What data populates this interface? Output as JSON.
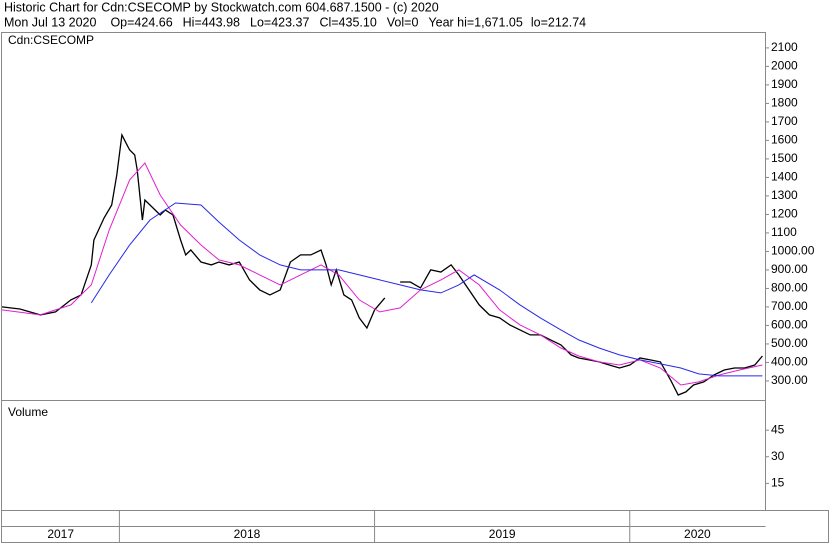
{
  "chart_data": {
    "type": "line",
    "title": "Historic Chart for Cdn:CSECOMP by Stockwatch.com 604.687.1500 - (c) 2020",
    "subtitle": [
      "Mon Jul 13 2020",
      "Op=424.66",
      "Hi=443.98",
      "Lo=423.37",
      "Cl=435.10",
      "Vol=0",
      "Year hi=1,671.05",
      "lo=212.74"
    ],
    "symbol_label": "Cdn:CSECOMP",
    "volume_label": "Volume",
    "xlim": [
      2017.54,
      2020.53
    ],
    "year_bands": [
      2017,
      2018,
      2019,
      2020
    ],
    "ylim": [
      197,
      2186
    ],
    "yticks": [
      2100,
      2000,
      1900,
      1800,
      1700,
      1600,
      1500,
      1400,
      1300,
      1200,
      1100,
      {
        "value": 1000,
        "label": "1000.00"
      },
      {
        "value": 900,
        "label": "900.00"
      },
      {
        "value": 800,
        "label": "800.00"
      },
      {
        "value": 700,
        "label": "700.00"
      },
      {
        "value": 600,
        "label": "600.00"
      },
      {
        "value": 500,
        "label": "500.00"
      },
      {
        "value": 400,
        "label": "400.00"
      },
      {
        "value": 300,
        "label": "300.00"
      }
    ],
    "volume_ylim": [
      0,
      62
    ],
    "volume_yticks": [
      45,
      30,
      15
    ],
    "series": [
      {
        "color": "#000000",
        "x": [
          2017.54,
          2017.61,
          2017.69,
          2017.75,
          2017.81,
          2017.85,
          2017.89,
          2017.9,
          2017.94,
          2017.97,
          2017.99,
          2018.01,
          2018.03,
          2018.04,
          2018.06,
          2018.07,
          2018.09,
          2018.1,
          2018.12,
          2018.14,
          2018.16,
          2018.18,
          2018.21,
          2018.24,
          2018.26,
          2018.28,
          2018.32,
          2018.36,
          2018.39,
          2018.43,
          2018.47,
          2018.51,
          2018.55,
          2018.59,
          2018.63,
          2018.67,
          2018.71,
          2018.75,
          2018.79,
          2018.81,
          2018.83,
          2018.85,
          2018.88,
          2018.91,
          2018.94,
          2018.97,
          2019.0,
          2019.04,
          2019.07,
          2019.1,
          2019.14,
          2019.18,
          2019.22,
          2019.26,
          2019.3,
          2019.33,
          2019.37,
          2019.41,
          2019.45,
          2019.49,
          2019.53,
          2019.57,
          2019.61,
          2019.65,
          2019.69,
          2019.73,
          2019.77,
          2019.8,
          2019.84,
          2019.88,
          2019.92,
          2019.96,
          2020.0,
          2020.04,
          2020.08,
          2020.12,
          2020.16,
          2020.19,
          2020.22,
          2020.25,
          2020.29,
          2020.33,
          2020.37,
          2020.41,
          2020.45,
          2020.49,
          2020.52
        ],
        "values": [
          700,
          689,
          657,
          673,
          738,
          765,
          927,
          1062,
          1181,
          1251,
          1414,
          1630,
          1576,
          1549,
          1522,
          1441,
          1170,
          1278,
          1251,
          1224,
          1197,
          1224,
          1197,
          1062,
          981,
          1008,
          943,
          927,
          943,
          927,
          943,
          846,
          792,
          765,
          792,
          943,
          981,
          981,
          1008,
          927,
          819,
          900,
          765,
          738,
          641,
          586,
          684,
          749,
          null,
          835,
          835,
          803,
          900,
          889,
          927,
          873,
          792,
          711,
          657,
          641,
          603,
          576,
          549,
          549,
          522,
          495,
          441,
          424,
          414,
          403,
          386,
          370,
          386,
          424,
          414,
          403,
          305,
          224,
          241,
          278,
          295,
          332,
          359,
          370,
          370,
          386,
          435
        ]
      },
      {
        "color": "#e020d0",
        "x": [
          2017.54,
          2017.69,
          2017.81,
          2017.89,
          2017.96,
          2018.04,
          2018.1,
          2018.16,
          2018.24,
          2018.32,
          2018.39,
          2018.47,
          2018.55,
          2018.63,
          2018.71,
          2018.79,
          2018.86,
          2018.94,
          2019.02,
          2019.1,
          2019.18,
          2019.26,
          2019.33,
          2019.41,
          2019.49,
          2019.57,
          2019.65,
          2019.73,
          2019.8,
          2019.88,
          2019.96,
          2020.04,
          2020.12,
          2020.2,
          2020.27,
          2020.35,
          2020.43,
          2020.52
        ],
        "values": [
          684,
          657,
          711,
          819,
          1116,
          1386,
          1478,
          1305,
          1143,
          1035,
          954,
          927,
          873,
          819,
          873,
          927,
          873,
          738,
          673,
          695,
          792,
          846,
          900,
          819,
          684,
          603,
          549,
          478,
          435,
          403,
          386,
          414,
          370,
          278,
          295,
          332,
          359,
          386
        ]
      },
      {
        "color": "#2828e8",
        "x": [
          2017.89,
          2017.96,
          2018.04,
          2018.12,
          2018.22,
          2018.32,
          2018.39,
          2018.47,
          2018.55,
          2018.63,
          2018.71,
          2018.79,
          2018.86,
          2018.94,
          2019.02,
          2019.1,
          2019.18,
          2019.26,
          2019.33,
          2019.39,
          2019.49,
          2019.57,
          2019.65,
          2019.73,
          2019.8,
          2019.88,
          2019.96,
          2020.04,
          2020.12,
          2020.2,
          2020.27,
          2020.35,
          2020.43,
          2020.52
        ],
        "values": [
          722,
          873,
          1035,
          1170,
          1262,
          1251,
          1159,
          1062,
          981,
          927,
          900,
          900,
          900,
          873,
          846,
          819,
          792,
          776,
          819,
          873,
          792,
          711,
          641,
          576,
          522,
          478,
          441,
          414,
          392,
          370,
          338,
          327,
          327,
          327
        ]
      }
    ]
  }
}
